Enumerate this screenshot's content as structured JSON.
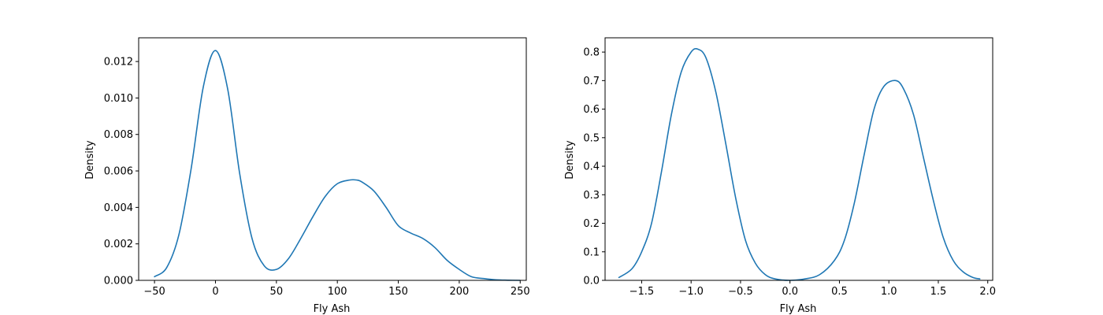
{
  "chart_data": [
    {
      "type": "line",
      "xlabel": "Fly Ash",
      "ylabel": "Density",
      "xlim": [
        -63,
        255
      ],
      "ylim": [
        0,
        0.0133
      ],
      "xticks": [
        -50,
        0,
        50,
        100,
        150,
        200,
        250
      ],
      "yticks": [
        0,
        0.002,
        0.004,
        0.006,
        0.008,
        0.01,
        0.012
      ],
      "xtick_labels": [
        "−50",
        "0",
        "50",
        "100",
        "150",
        "200",
        "250"
      ],
      "ytick_labels": [
        "0.000",
        "0.002",
        "0.004",
        "0.006",
        "0.008",
        "0.010",
        "0.012"
      ],
      "grid": false,
      "color": "#1f77b4",
      "series": [
        {
          "x": [
            -50,
            -40,
            -30,
            -20,
            -10,
            0,
            10,
            20,
            30,
            40,
            50,
            60,
            70,
            80,
            90,
            100,
            110,
            116,
            120,
            130,
            140,
            150,
            160,
            170,
            180,
            190,
            200,
            210,
            220,
            230,
            240,
            250
          ],
          "y": [
            0.0002,
            0.0007,
            0.0025,
            0.0061,
            0.0106,
            0.0126,
            0.0105,
            0.0058,
            0.0023,
            0.0008,
            0.0006,
            0.0012,
            0.0023,
            0.0035,
            0.0046,
            0.0053,
            0.0055,
            0.0055,
            0.0054,
            0.0049,
            0.004,
            0.003,
            0.0026,
            0.0023,
            0.0018,
            0.0011,
            0.0006,
            0.0002,
            0.0001,
            3e-05,
            1e-05,
            0.0
          ]
        }
      ]
    },
    {
      "type": "line",
      "xlabel": "Fly Ash",
      "ylabel": "Density",
      "xlim": [
        -1.87,
        2.05
      ],
      "ylim": [
        0,
        0.85
      ],
      "xticks": [
        -1.5,
        -1.0,
        -0.5,
        0.0,
        0.5,
        1.0,
        1.5,
        2.0
      ],
      "yticks": [
        0.0,
        0.1,
        0.2,
        0.3,
        0.4,
        0.5,
        0.6,
        0.7,
        0.8
      ],
      "xtick_labels": [
        "−1.5",
        "−1.0",
        "−0.5",
        "0.0",
        "0.5",
        "1.0",
        "1.5",
        "2.0"
      ],
      "ytick_labels": [
        "0.0",
        "0.1",
        "0.2",
        "0.3",
        "0.4",
        "0.5",
        "0.6",
        "0.7",
        "0.8"
      ],
      "grid": false,
      "color": "#1f77b4",
      "series": [
        {
          "x": [
            -1.73,
            -1.6,
            -1.5,
            -1.4,
            -1.3,
            -1.2,
            -1.1,
            -1.0,
            -0.93,
            -0.85,
            -0.75,
            -0.65,
            -0.55,
            -0.45,
            -0.35,
            -0.25,
            -0.15,
            0.0,
            0.15,
            0.3,
            0.45,
            0.55,
            0.65,
            0.75,
            0.85,
            0.95,
            1.07,
            1.15,
            1.25,
            1.35,
            1.45,
            1.55,
            1.65,
            1.75,
            1.85,
            1.92
          ],
          "y": [
            0.01,
            0.04,
            0.1,
            0.2,
            0.38,
            0.58,
            0.73,
            0.8,
            0.81,
            0.78,
            0.66,
            0.48,
            0.29,
            0.14,
            0.06,
            0.02,
            0.005,
            0.0,
            0.005,
            0.02,
            0.07,
            0.14,
            0.27,
            0.44,
            0.6,
            0.68,
            0.7,
            0.67,
            0.58,
            0.43,
            0.28,
            0.15,
            0.07,
            0.03,
            0.01,
            0.005
          ]
        }
      ]
    }
  ]
}
